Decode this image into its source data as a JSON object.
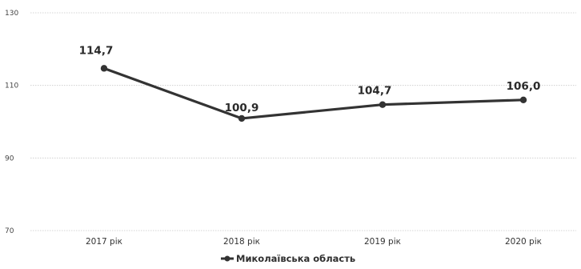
{
  "chart_data": {
    "type": "line",
    "categories": [
      "2017 рік",
      "2018 рік",
      "2019 рік",
      "2020 рік"
    ],
    "series": [
      {
        "name": "Миколаївська область",
        "values": [
          114.7,
          100.9,
          104.7,
          106.0
        ],
        "labels": [
          "114,7",
          "100,9",
          "104,7",
          "106,0"
        ]
      }
    ],
    "yticks": [
      70,
      90,
      110,
      130
    ],
    "ylim": [
      70,
      130
    ],
    "grid": true,
    "legend": "bottom",
    "colors": {
      "line": "#333333",
      "grid": "#c8c8c8"
    }
  }
}
